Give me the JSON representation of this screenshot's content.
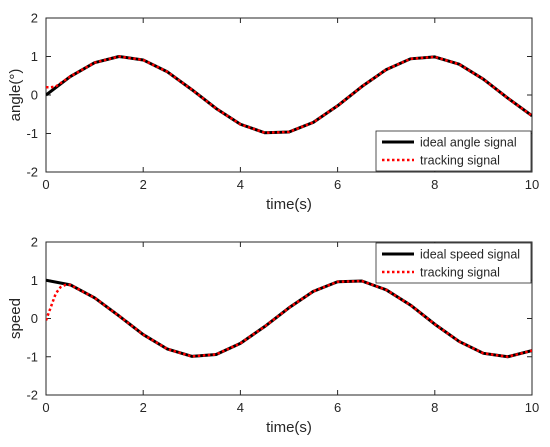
{
  "chart_data": [
    {
      "type": "line",
      "xlabel": "time(s)",
      "ylabel": "angle(°)",
      "xlim": [
        0,
        10
      ],
      "ylim": [
        -2,
        2
      ],
      "xticks": [
        0,
        2,
        4,
        6,
        8,
        10
      ],
      "yticks": [
        -2,
        -1,
        0,
        1,
        2
      ],
      "grid": false,
      "legend_position": "bottom-right",
      "series": [
        {
          "name": "ideal angle signal",
          "color": "#000000",
          "style": "solid",
          "x": [
            0,
            0.5,
            1,
            1.5,
            2,
            2.5,
            3,
            3.5,
            4,
            4.5,
            5,
            5.5,
            6,
            6.5,
            7,
            7.5,
            8,
            8.5,
            9,
            9.5,
            10
          ],
          "y": [
            0,
            0.48,
            0.84,
            1.0,
            0.91,
            0.6,
            0.14,
            -0.35,
            -0.76,
            -0.98,
            -0.96,
            -0.71,
            -0.28,
            0.22,
            0.66,
            0.94,
            0.99,
            0.8,
            0.41,
            -0.08,
            -0.54
          ]
        },
        {
          "name": "tracking signal",
          "color": "#ff0000",
          "style": "dotted",
          "x": [
            0,
            0.1,
            0.2,
            0.5,
            1,
            1.5,
            2,
            2.5,
            3,
            3.5,
            4,
            4.5,
            5,
            5.5,
            6,
            6.5,
            7,
            7.5,
            8,
            8.5,
            9,
            9.5,
            10
          ],
          "y": [
            0.2,
            0.2,
            0.22,
            0.48,
            0.84,
            1.0,
            0.91,
            0.6,
            0.14,
            -0.35,
            -0.76,
            -0.98,
            -0.96,
            -0.71,
            -0.28,
            0.22,
            0.66,
            0.94,
            0.99,
            0.8,
            0.41,
            -0.08,
            -0.54
          ]
        }
      ]
    },
    {
      "type": "line",
      "xlabel": "time(s)",
      "ylabel": "speed",
      "xlim": [
        0,
        10
      ],
      "ylim": [
        -2,
        2
      ],
      "xticks": [
        0,
        2,
        4,
        6,
        8,
        10
      ],
      "yticks": [
        -2,
        -1,
        0,
        1,
        2
      ],
      "grid": false,
      "legend_position": "top-right",
      "series": [
        {
          "name": "ideal speed signal",
          "color": "#000000",
          "style": "solid",
          "x": [
            0,
            0.5,
            1,
            1.5,
            2,
            2.5,
            3,
            3.5,
            4,
            4.5,
            5,
            5.5,
            6,
            6.5,
            7,
            7.5,
            8,
            8.5,
            9,
            9.5,
            10
          ],
          "y": [
            1.0,
            0.88,
            0.54,
            0.07,
            -0.42,
            -0.8,
            -0.99,
            -0.94,
            -0.65,
            -0.21,
            0.28,
            0.71,
            0.96,
            0.98,
            0.75,
            0.35,
            -0.15,
            -0.6,
            -0.91,
            -1.0,
            -0.84
          ]
        },
        {
          "name": "tracking signal",
          "color": "#ff0000",
          "style": "dotted",
          "x": [
            0,
            0.1,
            0.2,
            0.3,
            0.4,
            0.5,
            1,
            1.5,
            2,
            2.5,
            3,
            3.5,
            4,
            4.5,
            5,
            5.5,
            6,
            6.5,
            7,
            7.5,
            8,
            8.5,
            9,
            9.5,
            10
          ],
          "y": [
            -0.05,
            0.3,
            0.65,
            0.82,
            0.88,
            0.88,
            0.54,
            0.07,
            -0.42,
            -0.8,
            -0.99,
            -0.94,
            -0.65,
            -0.21,
            0.28,
            0.71,
            0.96,
            0.98,
            0.75,
            0.35,
            -0.15,
            -0.6,
            -0.91,
            -1.0,
            -0.84
          ]
        }
      ]
    }
  ]
}
